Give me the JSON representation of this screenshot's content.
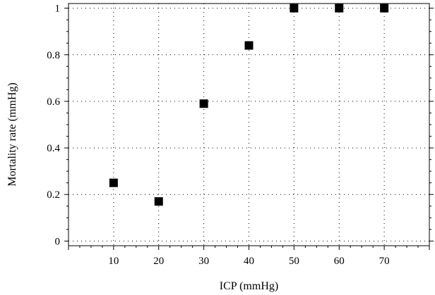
{
  "chart_data": {
    "type": "scatter",
    "title": "",
    "xlabel": "ICP (mmHg)",
    "ylabel": "Mortality rate (mmHg)",
    "xlim": [
      0,
      80
    ],
    "ylim": [
      -0.02,
      1.02
    ],
    "x_ticks": [
      10,
      20,
      30,
      40,
      50,
      60,
      70
    ],
    "y_ticks": [
      0,
      0.2,
      0.4,
      0.6,
      0.8,
      1
    ],
    "y_tick_labels": [
      "0",
      "0.2",
      "0.4",
      "0.6",
      "0.8",
      "1"
    ],
    "grid": true,
    "marker": "square",
    "marker_color": "#000000",
    "series": [
      {
        "x": [
          10,
          20,
          30,
          40,
          50,
          60,
          70
        ],
        "y": [
          0.25,
          0.17,
          0.59,
          0.84,
          1.0,
          1.0,
          1.0
        ]
      }
    ]
  }
}
